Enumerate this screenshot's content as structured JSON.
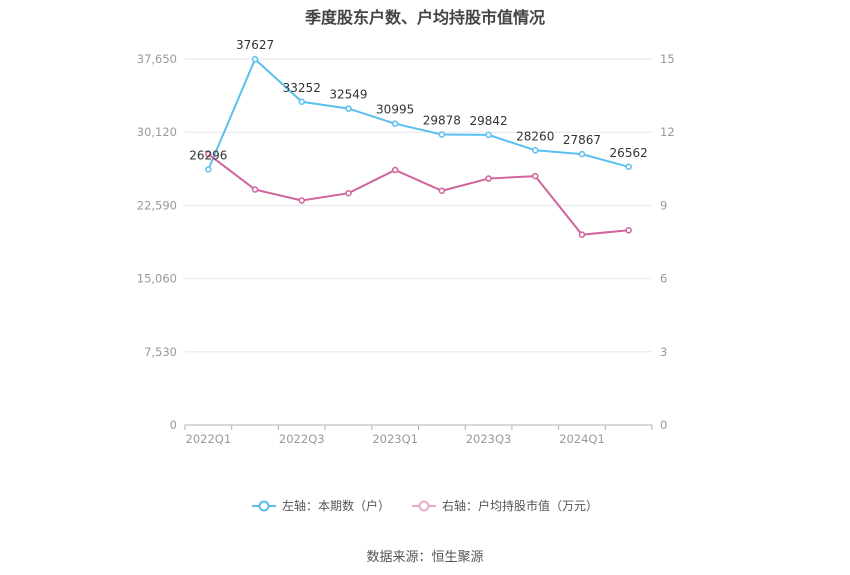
{
  "chart_data": {
    "type": "line",
    "title": "季度股东户数、户均持股市值情况",
    "categories": [
      "2022Q1",
      "2022Q2",
      "2022Q3",
      "2022Q4",
      "2023Q1",
      "2023Q2",
      "2023Q3",
      "2023Q4",
      "2024Q1",
      "2024Q2"
    ],
    "x_tick_labels": [
      "2022Q1",
      "2022Q3",
      "2023Q1",
      "2023Q3",
      "2024Q1"
    ],
    "left_axis": {
      "ticks": [
        "0",
        "7,530",
        "15,060",
        "22,590",
        "30,120",
        "37,650"
      ],
      "ylim": [
        0,
        37650
      ]
    },
    "right_axis": {
      "ticks": [
        "0",
        "3",
        "6",
        "9",
        "12",
        "15"
      ],
      "ylim": [
        0,
        15
      ]
    },
    "series": [
      {
        "name": "左轴：本期数（户）",
        "axis": "left",
        "color": "#5bc0f0",
        "values": [
          26296,
          37627,
          33252,
          32549,
          30995,
          29878,
          29842,
          28260,
          27867,
          26562
        ],
        "labels": [
          "26296",
          "37627",
          "33252",
          "32549",
          "30995",
          "29878",
          "29842",
          "28260",
          "27867",
          "26562"
        ]
      },
      {
        "name": "右轴：户均持股市值（万元）",
        "axis": "right",
        "color": "#d0649d",
        "values": [
          11.1,
          9.65,
          9.2,
          9.5,
          10.45,
          9.6,
          10.1,
          10.2,
          7.8,
          7.98
        ]
      }
    ],
    "grid": true,
    "legend_position": "bottom"
  },
  "source": "数据来源：恒生聚源"
}
